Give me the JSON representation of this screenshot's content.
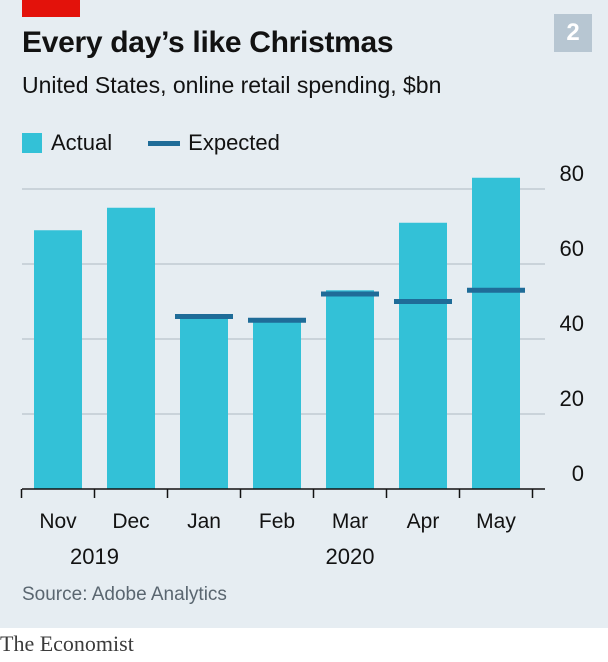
{
  "badge": "2",
  "title": "Every day’s like Christmas",
  "subtitle": "United States, online retail spending, $bn",
  "source": "Source: Adobe Analytics",
  "brand": "The Economist",
  "colors": {
    "actual": "#33c1d7",
    "expected": "#1f6c98",
    "accent_red": "#e3120b"
  },
  "chart_data": {
    "type": "bar",
    "categories": [
      "Nov",
      "Dec",
      "Jan",
      "Feb",
      "Mar",
      "Apr",
      "May"
    ],
    "year_labels": [
      {
        "label": "2019",
        "from": 0,
        "to": 1
      },
      {
        "label": "2020",
        "from": 2,
        "to": 6
      }
    ],
    "series": [
      {
        "name": "Actual",
        "type": "bar",
        "values": [
          69,
          75,
          46,
          45,
          53,
          71,
          83
        ]
      },
      {
        "name": "Expected",
        "type": "marker",
        "values": [
          null,
          null,
          46,
          45,
          52,
          50,
          53
        ]
      }
    ],
    "ylim": [
      0,
      80
    ],
    "yticks": [
      "0",
      "20",
      "40",
      "60",
      "80"
    ],
    "y_axis_side": "right",
    "grid": true,
    "legend": "top-left"
  }
}
